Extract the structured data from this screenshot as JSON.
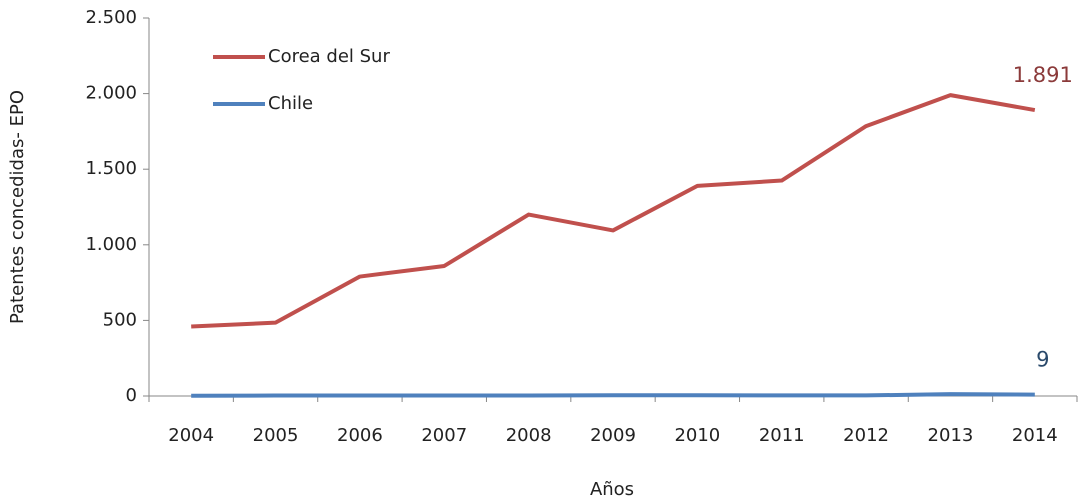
{
  "chart_data": {
    "type": "line",
    "x_label": "Años",
    "y_label": "Patentes concedidas- EPO",
    "categories": [
      "2004",
      "2005",
      "2006",
      "2007",
      "2008",
      "2009",
      "2010",
      "2011",
      "2012",
      "2013",
      "2014"
    ],
    "series": [
      {
        "name": "Corea del Sur",
        "color": "#c0504d",
        "values": [
          460,
          485,
          790,
          860,
          1200,
          1095,
          1390,
          1425,
          1785,
          1990,
          1891
        ],
        "value_labels": [
          null,
          null,
          null,
          null,
          null,
          null,
          null,
          null,
          null,
          null,
          "1.891"
        ]
      },
      {
        "name": "Chile",
        "color": "#4f81bd",
        "values": [
          2,
          3,
          3,
          3,
          3,
          5,
          5,
          4,
          4,
          12,
          9
        ],
        "value_labels": [
          null,
          null,
          null,
          null,
          null,
          null,
          null,
          null,
          null,
          null,
          "9"
        ]
      }
    ],
    "ylim": [
      0,
      2500
    ],
    "yticks": [
      0,
      500,
      {
        "value": 1000,
        "label": "1.000"
      },
      {
        "value": 1500,
        "label": "1.500"
      },
      {
        "value": 2000,
        "label": "2.000"
      },
      {
        "value": 2500,
        "label": "2.500"
      }
    ],
    "legend": "top-left",
    "grid": false
  }
}
